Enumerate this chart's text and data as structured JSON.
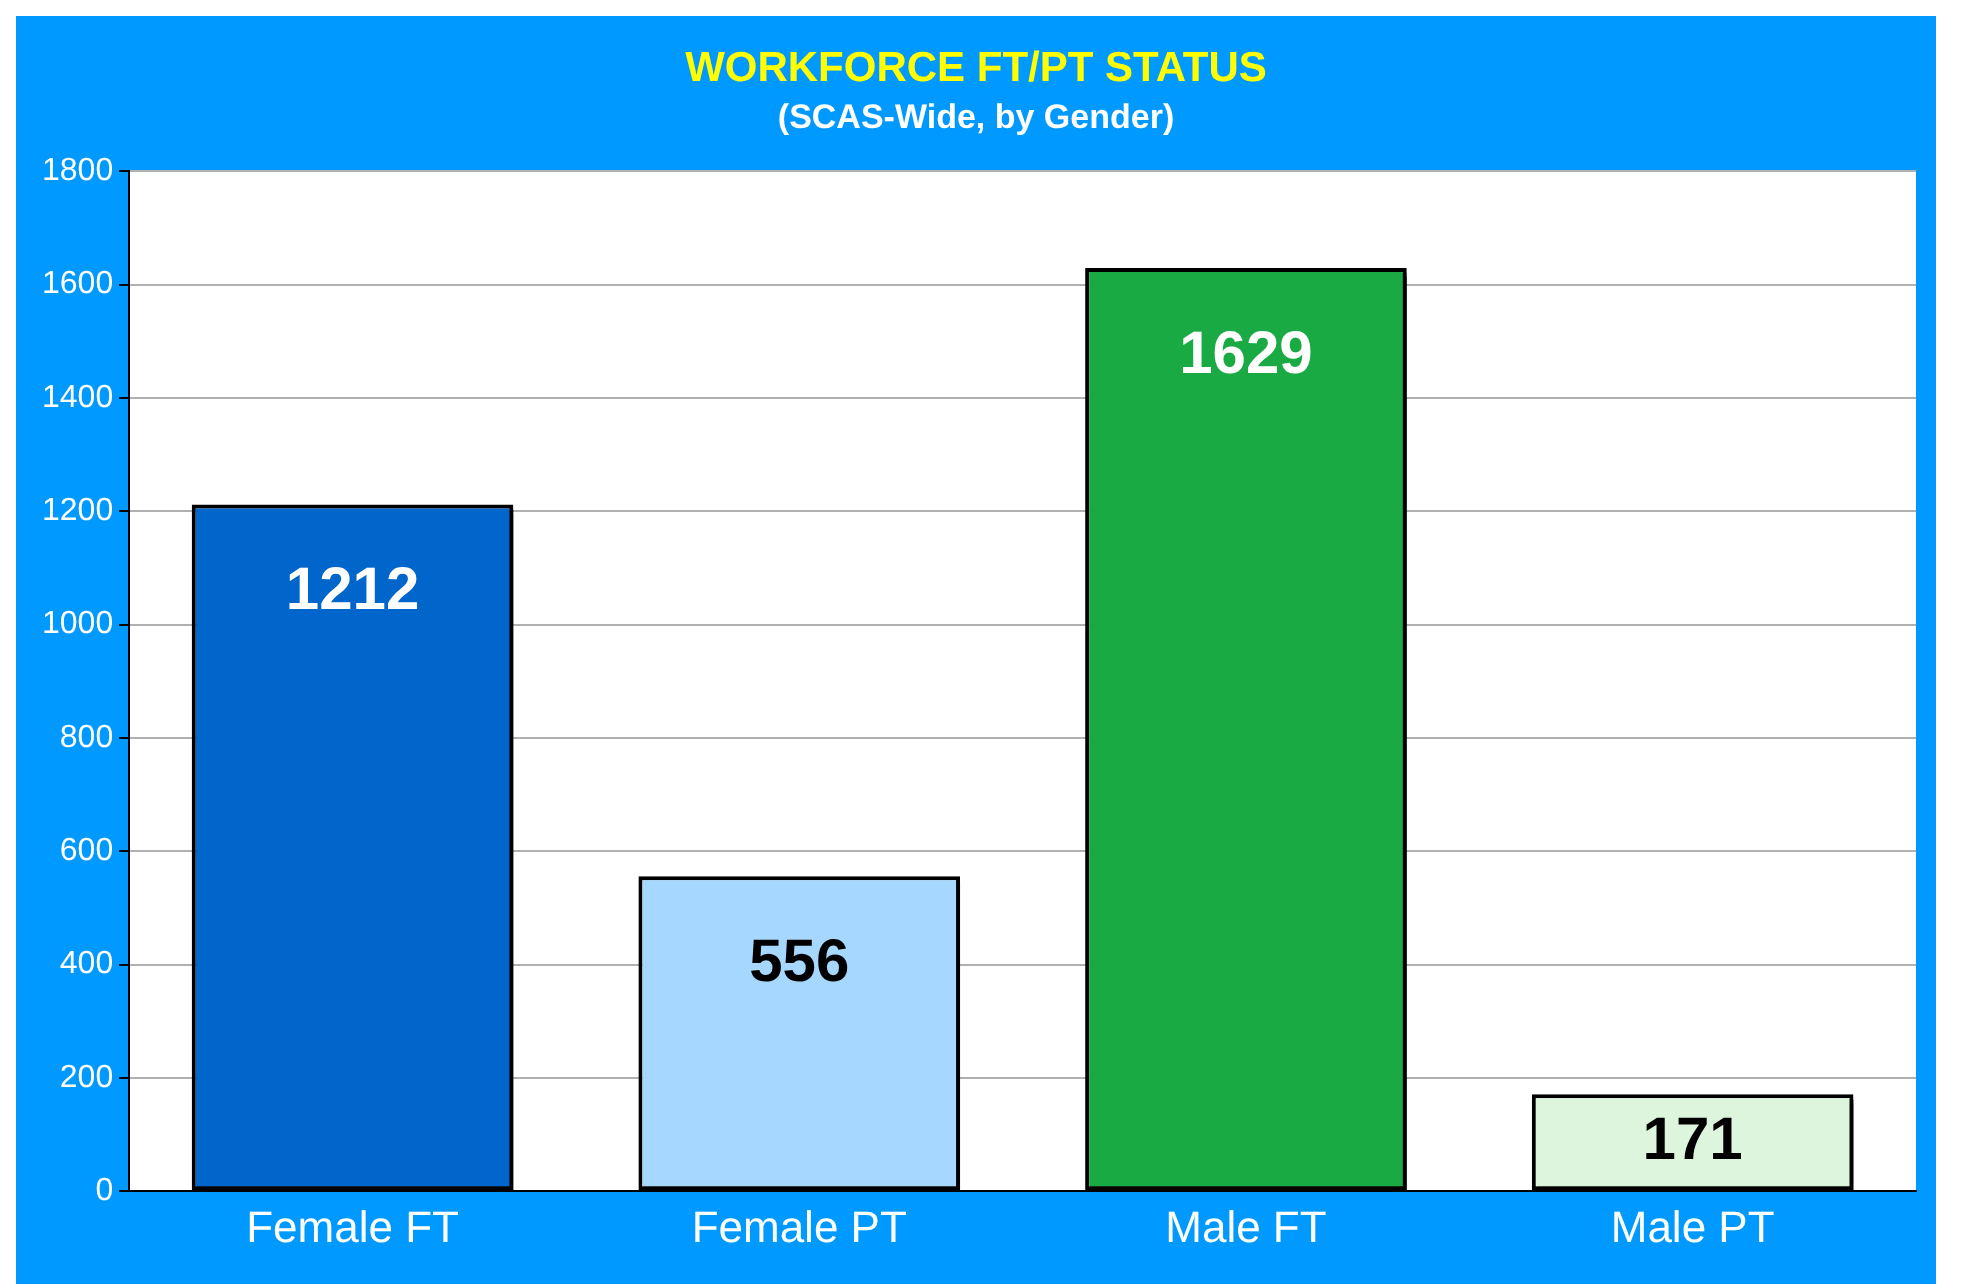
{
  "chart_data": {
    "type": "bar",
    "title": "WORKFORCE FT/PT STATUS",
    "subtitle": "(SCAS-Wide, by Gender)",
    "categories": [
      "Female FT",
      "Female PT",
      "Male FT",
      "Male PT"
    ],
    "values": [
      1212,
      556,
      1629,
      171
    ],
    "colors": [
      "#0066cc",
      "#a6d8ff",
      "#1aaa44",
      "#ddf5dd"
    ],
    "ylim": [
      0,
      1800
    ],
    "yticks": [
      0,
      200,
      400,
      600,
      800,
      1000,
      1200,
      1400,
      1600,
      1800
    ],
    "grid": "y",
    "data_labels": true,
    "legend": false
  }
}
